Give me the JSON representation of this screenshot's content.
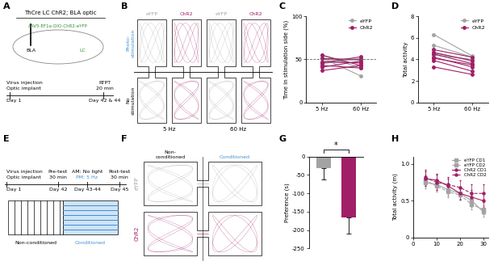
{
  "panel_labels": [
    "A",
    "B",
    "C",
    "D",
    "E",
    "F",
    "G",
    "H"
  ],
  "diagrams": {
    "A": {
      "title": "ThCre LC ChR2; BLA optic",
      "vector": "AAV5-EF1α-DIO-ChR2-eYFP",
      "regions": [
        "BLA",
        "LC"
      ],
      "events": [
        {
          "day": "Day 1",
          "text": [
            "Virus injection",
            "Optic implant"
          ]
        },
        {
          "day": "Day 42 & 44",
          "text": [
            "RTPT",
            "20 min"
          ]
        }
      ]
    },
    "B": {
      "groups": [
        "eYFP",
        "ChR2",
        "eYFP",
        "ChR2"
      ],
      "frequencies": [
        "5 Hz",
        "60 Hz"
      ],
      "sides": [
        [
          "Photo-",
          "stimulation"
        ],
        [
          "No",
          "stimulation"
        ]
      ]
    },
    "E": {
      "events": [
        {
          "day": "Day 1",
          "text": [
            "Virus injection",
            "Optic implant"
          ]
        },
        {
          "day": "Day 42",
          "text": [
            "Pre-test",
            "30 min"
          ]
        },
        {
          "day": "Day 43-44",
          "text": [
            "AM: No light",
            "PM: 5 Hz"
          ]
        },
        {
          "day": "Day 45",
          "text": [
            "Post-test",
            "30 min"
          ]
        }
      ],
      "sides": [
        "Non-conditioned",
        "Conditioned"
      ]
    },
    "F": {
      "sides": [
        [
          "Non-",
          "conditioned"
        ],
        [
          "Conditioned"
        ]
      ],
      "groups": [
        "eYFP",
        "ChR2"
      ]
    }
  },
  "chart_data": [
    {
      "type": "line",
      "categories": [
        "5 Hz",
        "60 Hz"
      ],
      "y_label": "Time in stimulation side (%)",
      "ylim": [
        0,
        100
      ],
      "yticks": [
        0,
        50,
        100
      ],
      "chance_level": 50,
      "legend": "upper right",
      "series": [
        {
          "name": "eYFP",
          "color": "#a3a3a3",
          "marker": "circle",
          "line_style": "solid",
          "values": [
            [
              55,
              40
            ],
            [
              52,
              31
            ],
            [
              48,
              46
            ],
            [
              45,
              51
            ],
            [
              50,
              49
            ]
          ]
        },
        {
          "name": "ChR2",
          "color": "#a01f66",
          "marker": "circle",
          "line_style": "solid",
          "values": [
            [
              46,
              53
            ],
            [
              41,
              48
            ],
            [
              37,
              43
            ],
            [
              51,
              50
            ],
            [
              43,
              40
            ],
            [
              55,
              43
            ],
            [
              47,
              46
            ]
          ]
        }
      ]
    },
    {
      "type": "line",
      "categories": [
        "5 Hz",
        "60 Hz"
      ],
      "y_label": "Total activity",
      "ylim": [
        0,
        8
      ],
      "yticks": [
        0,
        2,
        4,
        6,
        8
      ],
      "legend": "upper right",
      "series": [
        {
          "name": "eYFP",
          "color": "#a3a3a3",
          "marker": "circle",
          "line_style": "solid",
          "values": [
            [
              6.3,
              4.3
            ],
            [
              5.3,
              4.2
            ],
            [
              4.7,
              3.8
            ],
            [
              4.4,
              4.0
            ]
          ]
        },
        {
          "name": "ChR2",
          "color": "#a01f66",
          "marker": "circle",
          "line_style": "solid",
          "values": [
            [
              4.9,
              4.2
            ],
            [
              4.5,
              3.6
            ],
            [
              4.2,
              3.3
            ],
            [
              3.9,
              2.9
            ],
            [
              3.3,
              2.6
            ],
            [
              4.1,
              3.5
            ],
            [
              4.6,
              3.9
            ]
          ]
        }
      ]
    },
    {
      "type": "bar",
      "categories": [
        null,
        null
      ],
      "values": [
        -32,
        -165
      ],
      "errors": [
        30,
        45
      ],
      "colors": [
        "#a3a3a3",
        "#a01f66"
      ],
      "y_label": "Preference (s)",
      "significance": "*",
      "ylim": [
        -250,
        0
      ],
      "yticks": [
        -250,
        -200,
        -150,
        -100,
        -50,
        0
      ]
    },
    {
      "type": "line",
      "x": [
        5,
        10,
        15,
        20,
        25,
        30
      ],
      "y_label": "Total activity (m)",
      "xlim": [
        0,
        32
      ],
      "xticks": [
        0,
        10,
        20,
        30
      ],
      "ylim": [
        0,
        1.1
      ],
      "yticks": [
        0,
        {
          "value": 0.5,
          "label": "0.5"
        },
        {
          "value": 1.0,
          "label": "1.0"
        }
      ],
      "legend": "upper right",
      "series": [
        {
          "name": "eYFP CD1",
          "color": "#a3a3a3",
          "marker": "square",
          "line_style": "solid",
          "values": [
            0.75,
            0.72,
            0.65,
            0.6,
            0.5,
            0.35
          ],
          "errors": [
            0.08,
            0.07,
            0.08,
            0.07,
            0.08,
            0.06
          ]
        },
        {
          "name": "eYFP CD2",
          "color": "#a3a3a3",
          "marker": "square",
          "line_style": "dashed",
          "values": [
            0.78,
            0.7,
            0.62,
            0.58,
            0.45,
            0.38
          ],
          "errors": [
            0.08,
            0.08,
            0.07,
            0.07,
            0.07,
            0.06
          ]
        },
        {
          "name": "ChR2 CD1",
          "color": "#a01f66",
          "marker": "circle",
          "line_style": "solid",
          "values": [
            0.8,
            0.78,
            0.7,
            0.6,
            0.55,
            0.5
          ],
          "errors": [
            0.1,
            0.09,
            0.1,
            0.09,
            0.1,
            0.1
          ]
        },
        {
          "name": "ChR2 CD2",
          "color": "#a01f66",
          "marker": "circle",
          "line_style": "dashed",
          "values": [
            0.82,
            0.75,
            0.72,
            0.68,
            0.6,
            0.6
          ],
          "errors": [
            0.1,
            0.1,
            0.1,
            0.1,
            0.12,
            0.12
          ]
        }
      ]
    }
  ]
}
